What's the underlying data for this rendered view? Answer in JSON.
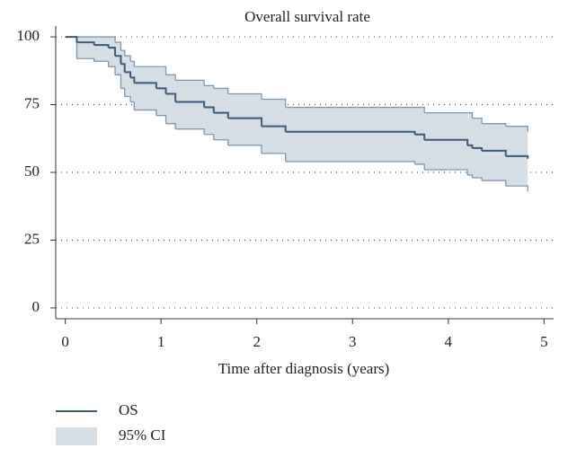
{
  "chart_data": {
    "type": "line",
    "title": "Overall survival rate",
    "x_label": "Time after diagnosis (years)",
    "x": [
      0,
      0.12,
      0.3,
      0.45,
      0.52,
      0.58,
      0.62,
      0.68,
      0.72,
      0.95,
      1.05,
      1.15,
      1.45,
      1.55,
      1.7,
      2.05,
      2.3,
      3.65,
      3.75,
      4.2,
      4.25,
      4.35,
      4.6,
      4.83
    ],
    "series": [
      {
        "name": "OS",
        "color": "#3d5a78",
        "values": [
          100,
          98,
          97,
          96,
          93,
          90,
          87,
          85,
          83,
          81,
          79,
          76,
          74,
          72,
          70,
          67,
          65,
          64,
          62,
          60,
          59,
          58,
          56,
          55
        ]
      }
    ],
    "band": {
      "name": "95% CI",
      "color": "#d6dee5",
      "edge_color": "#7f97ad",
      "lower": [
        100,
        92,
        91,
        89,
        86,
        81,
        78,
        76,
        73,
        71,
        68,
        66,
        64,
        62,
        60,
        57,
        54,
        53,
        51,
        49,
        48,
        47,
        45,
        43
      ],
      "upper": [
        100,
        100,
        100,
        100,
        98,
        95,
        93,
        91,
        89,
        89,
        86,
        84,
        82,
        81,
        79,
        77,
        74,
        74,
        72,
        72,
        70,
        68,
        67,
        65
      ]
    },
    "xlim": [
      -0.1,
      5.1
    ],
    "ylim": [
      -4,
      104
    ],
    "xticks": [
      0,
      1,
      2,
      3,
      4,
      5
    ],
    "yticks": [
      0,
      25,
      50,
      75,
      100
    ],
    "grid": true
  }
}
